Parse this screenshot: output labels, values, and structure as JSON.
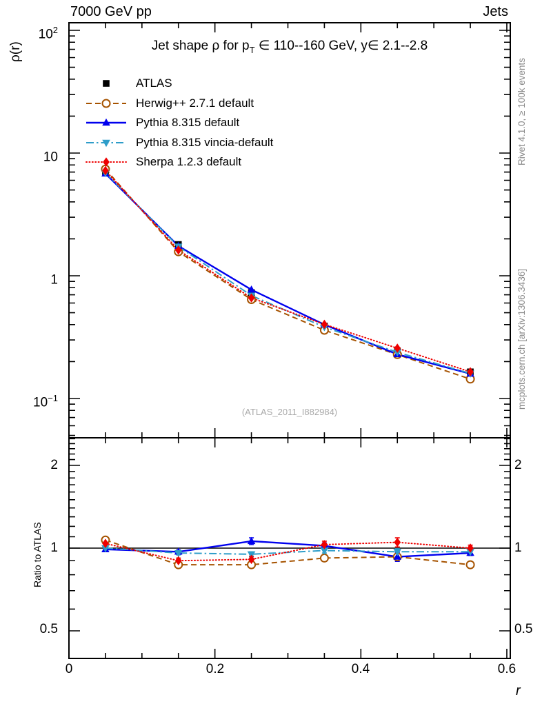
{
  "header": {
    "left": "7000 GeV pp",
    "right": "Jets"
  },
  "notes": {
    "rivet": "Rivet 4.1.0, ≥ 100k events",
    "mcplots": "mcplots.cern.ch [arXiv:1306.3436]",
    "watermark": "(ATLAS_2011_I882984)"
  },
  "title": {
    "pre": "Jet shape ρ for p",
    "sub": "T",
    "post": " ∈ 110--160 GeV, y∈ 2.1--2.8"
  },
  "axes": {
    "main_ylabel": "ρ(r)",
    "ratio_ylabel": "Ratio to ATLAS",
    "xlabel": "r",
    "main_yticks": [
      {
        "base": "10",
        "exp": "2"
      },
      {
        "base": "10",
        "exp": ""
      },
      {
        "base": "1",
        "exp": ""
      },
      {
        "base": "10",
        "exp": "−1"
      }
    ],
    "ratio_yticks": [
      "2",
      "1",
      "0.5"
    ],
    "xticks": [
      "0",
      "0.2",
      "0.4",
      "0.6"
    ]
  },
  "chart_data": {
    "type": "line",
    "title": "Jet shape ρ for p_T ∈ 110--160 GeV, y∈ 2.1--2.8",
    "xlabel": "r",
    "ylabel": "ρ(r)",
    "ratio_ylabel": "Ratio to ATLAS",
    "xlim": [
      0,
      0.605
    ],
    "ylim": [
      0.048,
      116
    ],
    "yscale": "log",
    "ratio_ylim": [
      0.4,
      2.52
    ],
    "ratio_yscale": "log",
    "grid": false,
    "legend_position": "top-left",
    "x": [
      0.05,
      0.15,
      0.25,
      0.35,
      0.45,
      0.55
    ],
    "series": [
      {
        "name": "ATLAS",
        "color": "#000000",
        "marker": "square",
        "line": "none",
        "values": [
          6.9,
          1.8,
          0.73,
          0.39,
          0.245,
          0.165
        ]
      },
      {
        "name": "Herwig++ 2.7.1 default",
        "color": "#a65300",
        "marker": "circle-open",
        "line": "dashed",
        "values": [
          7.4,
          1.57,
          0.64,
          0.36,
          0.228,
          0.144
        ],
        "ratio": [
          1.07,
          0.87,
          0.87,
          0.92,
          0.93,
          0.87
        ],
        "ratio_err": [
          0.02,
          0.015,
          0.015,
          0.015,
          0.02,
          0.02
        ]
      },
      {
        "name": "Pythia 8.315 default",
        "color": "#0000ee",
        "marker": "triangle-up",
        "line": "solid",
        "values": [
          6.8,
          1.75,
          0.77,
          0.4,
          0.229,
          0.159
        ],
        "ratio": [
          0.99,
          0.97,
          1.06,
          1.02,
          0.93,
          0.96
        ],
        "ratio_err": [
          0.012,
          0.015,
          0.03,
          0.025,
          0.035,
          0.02
        ]
      },
      {
        "name": "Pythia 8.315 vincia-default",
        "color": "#2e9dc9",
        "marker": "triangle-down",
        "line": "dashdot",
        "values": [
          6.9,
          1.73,
          0.69,
          0.382,
          0.238,
          0.16
        ],
        "ratio": [
          1.0,
          0.96,
          0.95,
          0.98,
          0.97,
          0.97
        ],
        "ratio_err": [
          0.012,
          0.015,
          0.02,
          0.02,
          0.025,
          0.018
        ]
      },
      {
        "name": "Sherpa 1.2.3 default",
        "color": "#ee0000",
        "marker": "diamond",
        "line": "dotted",
        "values": [
          7.2,
          1.62,
          0.66,
          0.402,
          0.257,
          0.165
        ],
        "ratio": [
          1.04,
          0.9,
          0.91,
          1.03,
          1.05,
          1.0
        ],
        "ratio_err": [
          0.025,
          0.02,
          0.025,
          0.03,
          0.04,
          0.025
        ]
      }
    ]
  }
}
